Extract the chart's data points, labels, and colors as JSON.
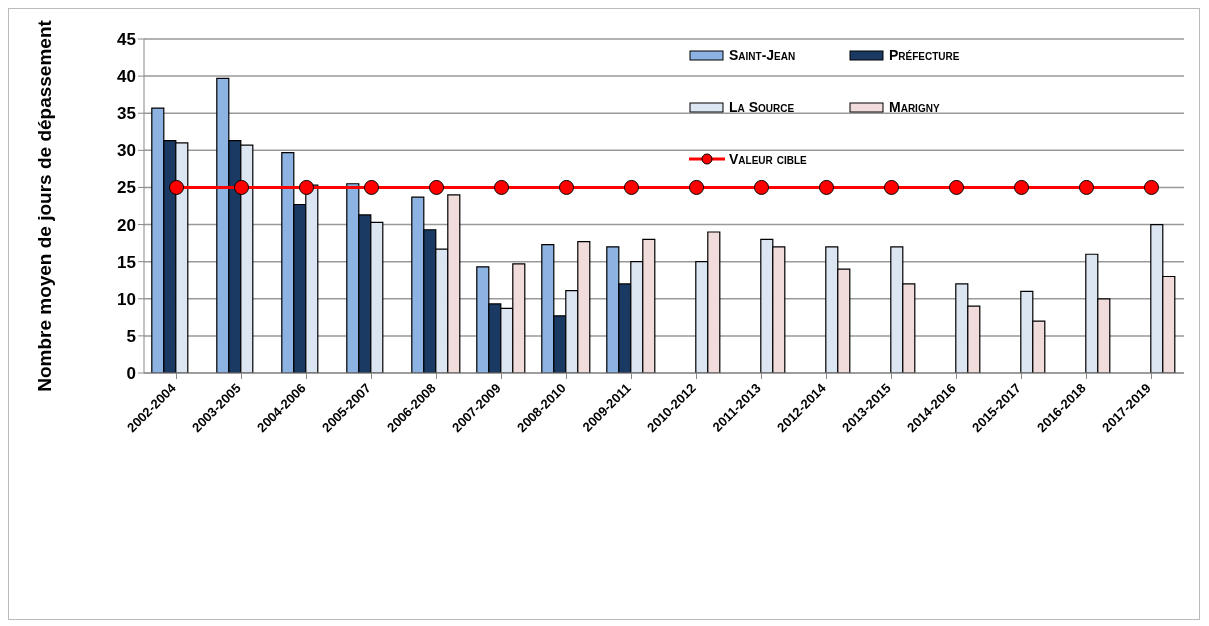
{
  "chart_data": {
    "type": "bar",
    "ylabel": "Nombre moyen de jours de dépassement",
    "categories": [
      "2002-2004",
      "2003-2005",
      "2004-2006",
      "2005-2007",
      "2006-2008",
      "2007-2009",
      "2008-2010",
      "2009-2011",
      "2010-2012",
      "2011-2013",
      "2012-2014",
      "2013-2015",
      "2014-2016",
      "2015-2017",
      "2016-2018",
      "2017-2019"
    ],
    "series": [
      {
        "name": "Saint-Jean",
        "color": "#8db3e2",
        "values": [
          35.7,
          39.7,
          29.7,
          25.5,
          23.7,
          14.3,
          17.3,
          17.0,
          null,
          null,
          null,
          null,
          null,
          null,
          null,
          null
        ]
      },
      {
        "name": "Préfecture",
        "color": "#1b3a63",
        "values": [
          31.3,
          31.3,
          22.7,
          21.3,
          19.3,
          9.3,
          7.7,
          12.0,
          null,
          null,
          null,
          null,
          null,
          null,
          null,
          null
        ]
      },
      {
        "name": "La Source",
        "color": "#dce6f2",
        "values": [
          31.0,
          30.7,
          25.3,
          20.3,
          16.7,
          8.7,
          11.1,
          15,
          15,
          18,
          17,
          17,
          12,
          11,
          16,
          20
        ]
      },
      {
        "name": "Marigny",
        "color": "#f2dcdb",
        "values": [
          null,
          null,
          null,
          null,
          24.0,
          14.7,
          17.7,
          18,
          19,
          17,
          14,
          12,
          9,
          7,
          10,
          13
        ]
      },
      {
        "name": "Valeur cible",
        "type": "line",
        "color": "#ff0000",
        "values": [
          25,
          25,
          25,
          25,
          25,
          25,
          25,
          25,
          25,
          25,
          25,
          25,
          25,
          25,
          25,
          25
        ]
      }
    ],
    "ylim": [
      0,
      45
    ],
    "yticks": [
      0,
      5,
      10,
      15,
      20,
      25,
      30,
      35,
      40,
      45
    ],
    "grid": "y",
    "legend": "top right",
    "marker": "circle",
    "line_style": "solid"
  }
}
